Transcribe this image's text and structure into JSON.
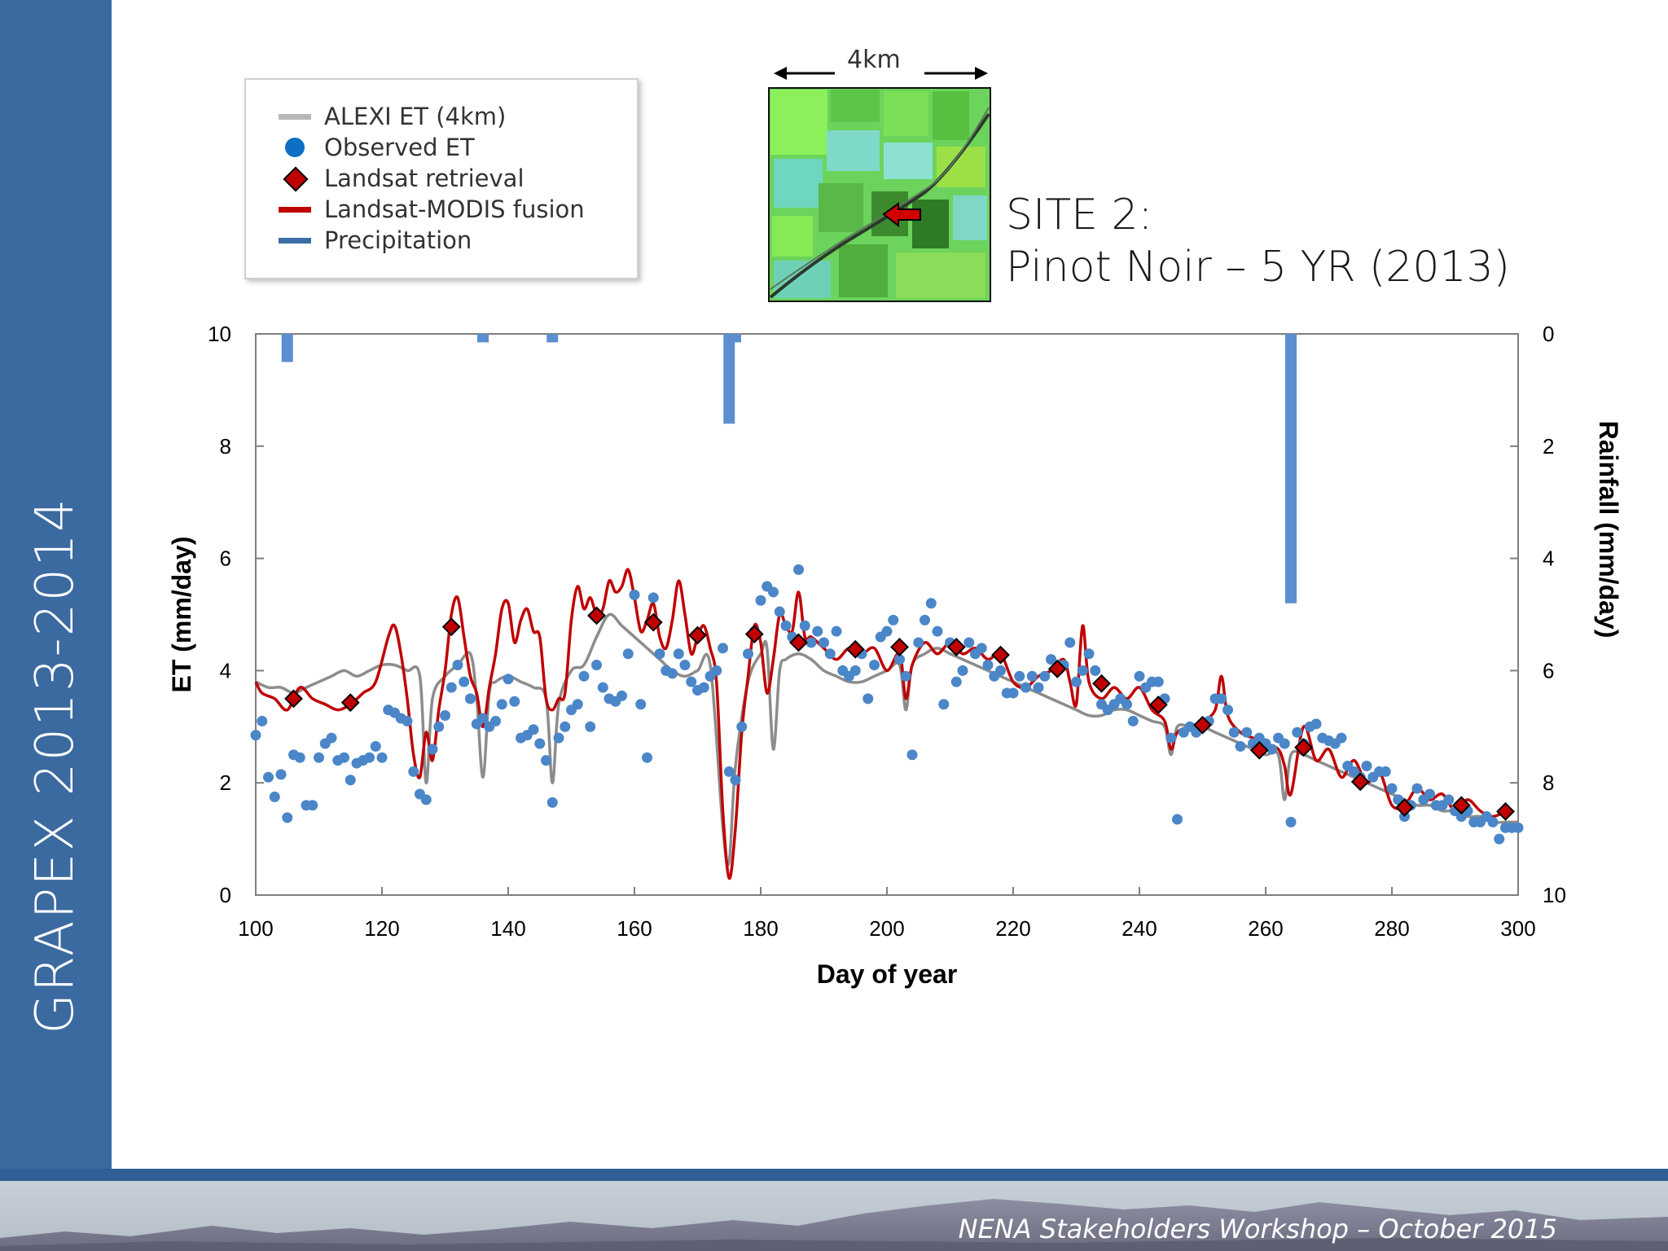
{
  "sidebar": {
    "title": "GRAPEX 2013-2014"
  },
  "footer": {
    "text": "NENA Stakeholders Workshop – October 2015"
  },
  "colors": {
    "sidebar": "#3b6aa0",
    "alexi": "#8c8c8c",
    "observed": "#4a86c8",
    "landsat": "#c00000",
    "fusion": "#c00000",
    "precip": "#5b8fd0"
  },
  "inset": {
    "scale_label": "4km",
    "site_title": "SITE 2:",
    "site_subtitle": "Pinot Noir – 5 YR (2013)"
  },
  "legend": {
    "items": [
      {
        "label": "ALEXI ET (4km)",
        "icon": "gray-line"
      },
      {
        "label": "Observed ET",
        "icon": "blue-dot"
      },
      {
        "label": "Landsat retrieval",
        "icon": "red-diamond"
      },
      {
        "label": "Landsat-MODIS fusion",
        "icon": "red-line"
      },
      {
        "label": "Precipitation",
        "icon": "blue-bar"
      }
    ]
  },
  "chart_data": {
    "type": "line",
    "xlabel": "Day of year",
    "ylabel": "ET (mm/day)",
    "y2label": "Rainfall (mm/day)",
    "xlim": [
      100,
      300
    ],
    "ylim": [
      0,
      10
    ],
    "y2lim": [
      0,
      10
    ],
    "y2_inverted": true,
    "xticks": [
      100,
      120,
      140,
      160,
      180,
      200,
      220,
      240,
      260,
      280,
      300
    ],
    "yticks": [
      0,
      2,
      4,
      6,
      8,
      10
    ],
    "y2ticks": [
      0,
      2,
      4,
      6,
      8,
      10
    ],
    "grid": false,
    "series": [
      {
        "name": "ALEXI ET (4km)",
        "kind": "line",
        "x": [
          100,
          102,
          104,
          106,
          108,
          110,
          112,
          114,
          116,
          118,
          120,
          122,
          124,
          126,
          127,
          128,
          130,
          132,
          134,
          135,
          136,
          137,
          138,
          140,
          142,
          144,
          146,
          147,
          148,
          150,
          152,
          154,
          156,
          158,
          160,
          162,
          164,
          166,
          168,
          170,
          172,
          174,
          175,
          176,
          178,
          180,
          181,
          182,
          183,
          184,
          186,
          188,
          190,
          192,
          194,
          196,
          198,
          200,
          202,
          203,
          204,
          206,
          208,
          210,
          212,
          214,
          216,
          218,
          220,
          222,
          224,
          226,
          228,
          230,
          232,
          234,
          236,
          238,
          240,
          242,
          244,
          245,
          246,
          248,
          250,
          252,
          254,
          256,
          258,
          260,
          262,
          263,
          264,
          266,
          268,
          270,
          272,
          274,
          276,
          278,
          280,
          282,
          284,
          286,
          288,
          290,
          292,
          294,
          296,
          298,
          300
        ],
        "y": [
          3.8,
          3.7,
          3.7,
          3.6,
          3.7,
          3.8,
          3.9,
          4.0,
          3.9,
          4.0,
          4.1,
          4.1,
          4.0,
          3.9,
          2.0,
          3.5,
          3.9,
          4.1,
          4.3,
          3.5,
          2.1,
          3.6,
          3.8,
          3.9,
          3.8,
          3.7,
          3.5,
          2.0,
          3.4,
          4.0,
          4.1,
          4.6,
          5.0,
          4.8,
          4.6,
          4.4,
          4.2,
          4.0,
          3.9,
          4.0,
          4.1,
          1.2,
          0.6,
          2.3,
          3.8,
          4.3,
          4.4,
          2.6,
          4.0,
          4.2,
          4.3,
          4.2,
          4.0,
          3.9,
          3.8,
          3.8,
          3.9,
          4.0,
          4.1,
          3.3,
          4.1,
          4.3,
          4.4,
          4.3,
          4.2,
          4.1,
          4.0,
          3.9,
          3.8,
          3.7,
          3.6,
          3.5,
          3.4,
          3.3,
          3.2,
          3.2,
          3.3,
          3.3,
          3.2,
          3.1,
          3.0,
          2.5,
          3.0,
          3.0,
          3.0,
          2.9,
          2.8,
          2.7,
          2.6,
          2.5,
          2.5,
          1.7,
          2.5,
          2.5,
          2.4,
          2.3,
          2.2,
          2.1,
          2.0,
          1.9,
          1.8,
          1.7,
          1.6,
          1.6,
          1.5,
          1.5,
          1.4,
          1.4,
          1.3,
          1.3,
          1.3
        ],
        "color": "#8c8c8c"
      },
      {
        "name": "Landsat-MODIS fusion",
        "kind": "line",
        "x": [
          100,
          101,
          103,
          105,
          107,
          109,
          111,
          113,
          115,
          117,
          119,
          121,
          122,
          123,
          124,
          125,
          126,
          127,
          128,
          129,
          130,
          131,
          132,
          133,
          134,
          135,
          136,
          137,
          138,
          139,
          140,
          141,
          142,
          143,
          144,
          145,
          146,
          147,
          148,
          149,
          150,
          151,
          152,
          153,
          154,
          155,
          156,
          157,
          158,
          159,
          160,
          161,
          162,
          163,
          164,
          165,
          166,
          167,
          168,
          169,
          170,
          171,
          172,
          173,
          174,
          175,
          176,
          177,
          178,
          179,
          180,
          181,
          182,
          183,
          184,
          185,
          186,
          187,
          188,
          190,
          192,
          194,
          196,
          198,
          200,
          202,
          203,
          204,
          206,
          208,
          210,
          212,
          214,
          216,
          218,
          220,
          222,
          224,
          226,
          228,
          229,
          230,
          231,
          232,
          234,
          236,
          238,
          240,
          242,
          244,
          245,
          246,
          248,
          250,
          252,
          253,
          254,
          256,
          258,
          260,
          262,
          263,
          264,
          266,
          268,
          270,
          272,
          274,
          276,
          278,
          280,
          282,
          284,
          286,
          288,
          290,
          292,
          294,
          296,
          298
        ],
        "y": [
          3.8,
          3.6,
          3.5,
          3.3,
          3.7,
          3.5,
          3.4,
          3.3,
          3.4,
          3.6,
          3.8,
          4.6,
          4.8,
          4.3,
          3.5,
          2.5,
          2.1,
          2.9,
          2.4,
          3.3,
          4.0,
          5.0,
          5.3,
          4.6,
          3.9,
          3.6,
          3.0,
          3.7,
          4.3,
          5.1,
          5.2,
          4.5,
          4.9,
          5.1,
          4.7,
          4.6,
          3.5,
          3.3,
          3.5,
          3.6,
          4.9,
          5.5,
          5.1,
          5.3,
          5.0,
          5.1,
          5.6,
          5.4,
          5.5,
          5.8,
          5.3,
          4.7,
          4.9,
          5.2,
          4.6,
          4.4,
          4.9,
          5.6,
          5.0,
          4.3,
          4.6,
          4.8,
          4.4,
          3.8,
          1.5,
          0.3,
          1.2,
          2.9,
          3.9,
          4.8,
          4.5,
          3.6,
          4.2,
          5.0,
          4.8,
          4.7,
          5.4,
          4.6,
          4.6,
          4.4,
          4.2,
          4.4,
          4.3,
          4.4,
          4.0,
          4.3,
          3.5,
          4.1,
          4.5,
          4.3,
          4.5,
          4.3,
          4.4,
          4.2,
          4.3,
          3.8,
          3.7,
          3.9,
          4.0,
          4.2,
          3.8,
          3.4,
          4.8,
          3.8,
          3.5,
          3.7,
          3.5,
          3.7,
          3.3,
          3.1,
          2.6,
          2.9,
          3.0,
          3.1,
          3.3,
          3.9,
          3.2,
          2.9,
          2.8,
          2.7,
          2.6,
          2.3,
          1.8,
          3.0,
          2.4,
          2.6,
          2.1,
          2.4,
          2.0,
          2.2,
          1.6,
          1.6,
          1.9,
          1.7,
          1.8,
          1.5,
          1.7,
          1.5,
          1.4,
          1.5
        ]
      },
      {
        "name": "Landsat retrieval",
        "kind": "marker",
        "x": [
          106,
          115,
          131,
          154,
          163,
          170,
          179,
          186,
          195,
          202,
          211,
          218,
          227,
          234,
          243,
          250,
          259,
          266,
          275,
          282,
          291,
          298
        ],
        "y": [
          3.5,
          3.43,
          4.78,
          4.98,
          4.86,
          4.63,
          4.65,
          4.5,
          4.38,
          4.42,
          4.42,
          4.28,
          4.03,
          3.77,
          3.39,
          3.03,
          2.58,
          2.63,
          2.02,
          1.56,
          1.6,
          1.49
        ]
      },
      {
        "name": "Observed ET",
        "kind": "scatter",
        "x": [
          100,
          101,
          102,
          103,
          104,
          105,
          106,
          107,
          108,
          109,
          110,
          111,
          112,
          113,
          114,
          115,
          116,
          117,
          118,
          119,
          120,
          121,
          122,
          123,
          124,
          125,
          126,
          127,
          128,
          129,
          130,
          131,
          132,
          133,
          134,
          135,
          136,
          137,
          138,
          139,
          140,
          141,
          142,
          143,
          144,
          145,
          146,
          147,
          148,
          149,
          150,
          151,
          152,
          153,
          154,
          155,
          156,
          157,
          158,
          159,
          160,
          161,
          162,
          163,
          164,
          165,
          166,
          167,
          168,
          169,
          170,
          171,
          172,
          173,
          174,
          175,
          176,
          177,
          178,
          179,
          180,
          181,
          182,
          183,
          184,
          185,
          186,
          187,
          188,
          189,
          190,
          191,
          192,
          193,
          194,
          195,
          196,
          197,
          198,
          199,
          200,
          201,
          202,
          203,
          204,
          205,
          206,
          207,
          208,
          209,
          210,
          211,
          212,
          213,
          214,
          215,
          216,
          217,
          218,
          219,
          220,
          221,
          222,
          223,
          224,
          225,
          226,
          227,
          228,
          229,
          230,
          231,
          232,
          233,
          234,
          235,
          236,
          237,
          238,
          239,
          240,
          241,
          242,
          243,
          244,
          245,
          246,
          247,
          248,
          249,
          250,
          251,
          252,
          253,
          254,
          255,
          256,
          257,
          258,
          259,
          260,
          261,
          262,
          263,
          264,
          265,
          266,
          267,
          268,
          269,
          270,
          271,
          272,
          273,
          274,
          275,
          276,
          277,
          278,
          279,
          280,
          281,
          282,
          283,
          284,
          285,
          286,
          287,
          288,
          289,
          290,
          291,
          292,
          293,
          294,
          295,
          296,
          297,
          298,
          299,
          300
        ],
        "y": [
          2.85,
          3.1,
          2.1,
          1.75,
          2.15,
          1.38,
          2.5,
          2.45,
          1.6,
          1.6,
          2.45,
          2.7,
          2.8,
          2.4,
          2.45,
          2.05,
          2.35,
          2.4,
          2.45,
          2.65,
          2.45,
          3.3,
          3.25,
          3.15,
          3.1,
          2.2,
          1.8,
          1.7,
          2.6,
          3.0,
          3.2,
          3.7,
          4.1,
          3.8,
          3.5,
          3.05,
          3.15,
          3.0,
          3.1,
          3.4,
          3.85,
          3.45,
          2.8,
          2.85,
          2.95,
          2.7,
          2.4,
          1.65,
          2.8,
          3.0,
          3.3,
          3.4,
          3.9,
          3.0,
          4.1,
          3.7,
          3.5,
          3.45,
          3.55,
          4.3,
          5.35,
          3.4,
          2.45,
          5.3,
          4.3,
          4.0,
          3.95,
          4.3,
          4.1,
          3.8,
          3.65,
          3.7,
          3.9,
          4.0,
          4.4,
          2.2,
          2.05,
          3.0,
          4.3,
          4.7,
          5.25,
          5.5,
          5.4,
          5.05,
          4.8,
          4.6,
          5.8,
          4.8,
          4.5,
          4.7,
          4.5,
          4.3,
          4.7,
          4.0,
          3.9,
          4.0,
          4.3,
          3.5,
          4.1,
          4.6,
          4.7,
          4.9,
          4.2,
          3.9,
          2.5,
          4.5,
          4.9,
          5.2,
          4.7,
          3.4,
          4.5,
          3.8,
          4.0,
          4.5,
          4.3,
          4.4,
          4.1,
          3.9,
          4.0,
          3.6,
          3.6,
          3.9,
          3.7,
          3.9,
          3.7,
          3.9,
          4.2,
          4.1,
          4.1,
          4.5,
          3.8,
          4.0,
          4.3,
          4.0,
          3.4,
          3.3,
          3.4,
          3.5,
          3.4,
          3.1,
          3.9,
          3.7,
          3.8,
          3.8,
          3.5,
          2.8,
          1.35,
          2.9,
          3.0,
          2.9,
          3.0,
          3.1,
          3.5,
          3.5,
          3.3,
          2.9,
          2.65,
          2.9,
          2.7,
          2.8,
          2.7,
          2.6,
          2.8,
          2.7,
          1.3,
          2.9,
          2.7,
          3.0,
          3.05,
          2.8,
          2.75,
          2.7,
          2.8,
          2.3,
          2.2,
          2.1,
          2.3,
          2.1,
          2.2,
          2.2,
          1.9,
          1.7,
          1.4,
          1.6,
          1.9,
          1.7,
          1.8,
          1.6,
          1.6,
          1.7,
          1.5,
          1.4,
          1.5,
          1.3,
          1.3,
          1.4,
          1.3,
          1.0,
          1.2,
          1.2,
          1.2
        ]
      },
      {
        "name": "Precipitation",
        "kind": "bar",
        "axis": "y2",
        "x": [
          105,
          136,
          147,
          175,
          176,
          264
        ],
        "y": [
          0.5,
          0.15,
          0.15,
          1.6,
          0.15,
          4.8
        ]
      }
    ]
  }
}
